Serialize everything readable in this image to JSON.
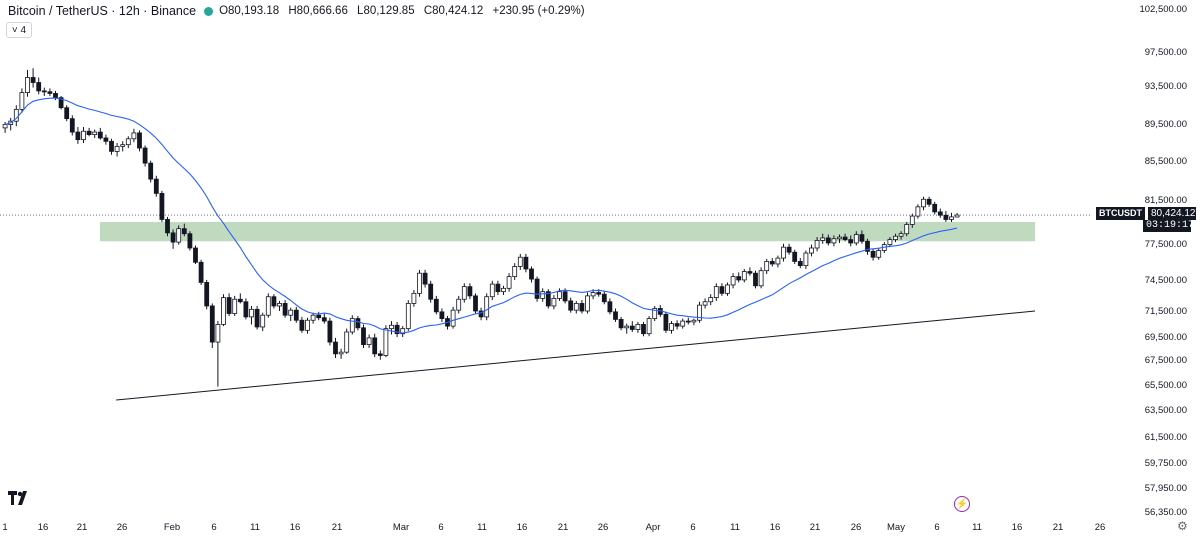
{
  "header": {
    "symbol": "Bitcoin / TetherUS · 12h · Binance",
    "open": "O80,193.18",
    "high": "H80,666.66",
    "low": "L80,129.85",
    "close": "C80,424.12",
    "change": "+230.95 (+0.29%)",
    "indicator_badge": "˅ 4"
  },
  "price_label": {
    "symbol": "BTCUSDT",
    "price": "80,424.12",
    "countdown": "03:19:17"
  },
  "colors": {
    "bull": "#131722",
    "bear": "#131722",
    "ma": "#2962ff",
    "zone": "#a5cba5",
    "trendline": "#131722",
    "accent": "#26a69a"
  },
  "icons": [
    "tradingview-logo-icon",
    "lightning-icon",
    "gear-icon"
  ],
  "chart_data": {
    "type": "candlestick",
    "title": "Bitcoin / TetherUS · 12h · Binance",
    "y_ticks": [
      "102,500.00",
      "97,500.00",
      "93,500.00",
      "89,500.00",
      "85,500.00",
      "81,500.00",
      "77,500.00",
      "74,500.00",
      "71,500.00",
      "69,500.00",
      "67,500.00",
      "65,500.00",
      "63,500.00",
      "61,500.00",
      "59,750.00",
      "57,950.00",
      "56,350.00"
    ],
    "x_ticks": [
      "1",
      "16",
      "21",
      "26",
      "Feb",
      "6",
      "11",
      "16",
      "21",
      "Mar",
      "6",
      "11",
      "16",
      "21",
      "26",
      "Apr",
      "6",
      "11",
      "16",
      "21",
      "26",
      "May",
      "6",
      "11",
      "16",
      "21",
      "26"
    ],
    "candles": [
      [
        1,
        90800,
        91500,
        90200,
        91200
      ],
      [
        1.5,
        91200,
        92000,
        90500,
        91600
      ],
      [
        2,
        91600,
        93500,
        91000,
        93000
      ],
      [
        2.5,
        93000,
        95500,
        92600,
        95000
      ],
      [
        3,
        95000,
        97700,
        94500,
        96800
      ],
      [
        3.5,
        96800,
        97900,
        95600,
        96200
      ],
      [
        4,
        96200,
        96800,
        94800,
        95200
      ],
      [
        4.5,
        95200,
        95600,
        94600,
        95100
      ],
      [
        5,
        95100,
        95500,
        94600,
        94900
      ],
      [
        5.5,
        94900,
        95200,
        94100,
        94400
      ],
      [
        6,
        94400,
        94600,
        93000,
        93200
      ],
      [
        6.5,
        93200,
        93500,
        91600,
        91900
      ],
      [
        7,
        91900,
        92300,
        89900,
        90300
      ],
      [
        7.5,
        90300,
        90900,
        88900,
        89400
      ],
      [
        8,
        89400,
        90900,
        89000,
        90400
      ],
      [
        8.5,
        90400,
        90800,
        89800,
        90000
      ],
      [
        9,
        90000,
        90600,
        89600,
        90300
      ],
      [
        9.5,
        90300,
        90800,
        89400,
        89600
      ],
      [
        10,
        89600,
        90000,
        88800,
        89200
      ],
      [
        10.5,
        89200,
        89500,
        87600,
        88000
      ],
      [
        11,
        88000,
        89000,
        87400,
        88600
      ],
      [
        11.5,
        88600,
        89200,
        88000,
        88800
      ],
      [
        12,
        88800,
        89800,
        88400,
        89500
      ],
      [
        12.5,
        89500,
        90700,
        89100,
        90200
      ],
      [
        13,
        90200,
        90500,
        88000,
        88400
      ],
      [
        13.5,
        88400,
        88700,
        86200,
        86600
      ],
      [
        14,
        86600,
        86900,
        84300,
        84700
      ],
      [
        14.5,
        84700,
        85100,
        82600,
        83000
      ],
      [
        15,
        83000,
        83300,
        79600,
        79900
      ],
      [
        15.5,
        79900,
        80200,
        77900,
        78300
      ],
      [
        16,
        78300,
        78700,
        76400,
        77200
      ],
      [
        16.5,
        77200,
        79200,
        76900,
        78800
      ],
      [
        17,
        78800,
        79400,
        77900,
        78200
      ],
      [
        17.5,
        78200,
        78500,
        76200,
        76500
      ],
      [
        18,
        76500,
        76800,
        74600,
        74800
      ],
      [
        18.5,
        74800,
        75100,
        72100,
        72400
      ],
      [
        19,
        72400,
        72700,
        69200,
        69600
      ],
      [
        19.5,
        69600,
        69900,
        64600,
        65300
      ],
      [
        20,
        65300,
        67800,
        60000,
        67400
      ],
      [
        20.5,
        67400,
        71000,
        67200,
        70600
      ],
      [
        21,
        70600,
        71100,
        68400,
        68700
      ],
      [
        21.5,
        68700,
        70800,
        68400,
        70400
      ],
      [
        22,
        70400,
        71100,
        69900,
        70100
      ],
      [
        22.5,
        70100,
        70500,
        68000,
        68300
      ],
      [
        23,
        68300,
        69600,
        67400,
        69200
      ],
      [
        23.5,
        69200,
        69600,
        66800,
        67100
      ],
      [
        24,
        67100,
        68800,
        66600,
        68500
      ],
      [
        24.5,
        68500,
        71100,
        68200,
        70700
      ],
      [
        25,
        70700,
        71000,
        69300,
        69600
      ],
      [
        25.5,
        69600,
        70200,
        69000,
        69900
      ],
      [
        26,
        69900,
        70300,
        68200,
        68500
      ],
      [
        26.5,
        68500,
        69400,
        67800,
        69100
      ],
      [
        27,
        69100,
        69500,
        67600,
        67900
      ],
      [
        27.5,
        67900,
        68300,
        66400,
        66700
      ],
      [
        28,
        66700,
        68200,
        66300,
        67900
      ],
      [
        28.5,
        67900,
        68800,
        67500,
        68500
      ],
      [
        29,
        68500,
        68900,
        67900,
        68200
      ],
      [
        29.5,
        68200,
        68700,
        67500,
        67800
      ],
      [
        30,
        67800,
        68200,
        64900,
        65300
      ],
      [
        30.5,
        65300,
        65800,
        63400,
        63900
      ],
      [
        31,
        63900,
        64500,
        63300,
        64100
      ],
      [
        31.5,
        64100,
        66900,
        63900,
        66500
      ],
      [
        32,
        66500,
        68500,
        66200,
        68100
      ],
      [
        32.5,
        68100,
        68400,
        66700,
        67000
      ],
      [
        33,
        67000,
        67400,
        64600,
        65000
      ],
      [
        33.5,
        65000,
        66200,
        64600,
        65800
      ],
      [
        34,
        65800,
        66300,
        63500,
        63900
      ],
      [
        34.5,
        63900,
        64300,
        63200,
        63700
      ],
      [
        35,
        63700,
        67300,
        63500,
        66900
      ],
      [
        35.5,
        66900,
        67800,
        66200,
        67300
      ],
      [
        36,
        67300,
        67700,
        65900,
        66300
      ],
      [
        36.5,
        66300,
        67200,
        65900,
        66900
      ],
      [
        37,
        66900,
        70300,
        66600,
        69900
      ],
      [
        37.5,
        69900,
        71500,
        69500,
        71100
      ],
      [
        38,
        71100,
        73900,
        70700,
        73500
      ],
      [
        38.5,
        73500,
        73900,
        71800,
        72200
      ],
      [
        39,
        72200,
        72600,
        70000,
        70400
      ],
      [
        39.5,
        70400,
        70800,
        68600,
        68900
      ],
      [
        40,
        68900,
        69300,
        67700,
        68100
      ],
      [
        40.5,
        68100,
        68400,
        66800,
        67200
      ],
      [
        41,
        67200,
        69500,
        66900,
        69100
      ],
      [
        41.5,
        69100,
        70800,
        68700,
        70400
      ],
      [
        42,
        70400,
        72300,
        70000,
        71900
      ],
      [
        42.5,
        71900,
        72300,
        70400,
        70800
      ],
      [
        43,
        70800,
        71100,
        68700,
        69000
      ],
      [
        43.5,
        69000,
        69400,
        67900,
        68300
      ],
      [
        44,
        68300,
        71100,
        67900,
        70700
      ],
      [
        44.5,
        70700,
        72600,
        70300,
        72200
      ],
      [
        45,
        72200,
        72600,
        70900,
        71300
      ],
      [
        45.5,
        71300,
        72000,
        70900,
        71700
      ],
      [
        46,
        71700,
        73500,
        71300,
        73100
      ],
      [
        46.5,
        73100,
        74700,
        72700,
        74300
      ],
      [
        47,
        74300,
        75800,
        73900,
        75400
      ],
      [
        47.5,
        75400,
        75800,
        73600,
        74000
      ],
      [
        48,
        74000,
        74300,
        72400,
        72800
      ],
      [
        48.5,
        72800,
        73100,
        70100,
        70500
      ],
      [
        49,
        70500,
        71700,
        70100,
        71300
      ],
      [
        49.5,
        71300,
        71600,
        69300,
        69600
      ],
      [
        50,
        69600,
        70900,
        69200,
        70500
      ],
      [
        50.5,
        70500,
        71700,
        70200,
        71300
      ],
      [
        51,
        71300,
        71700,
        69900,
        70200
      ],
      [
        51.5,
        70200,
        70600,
        68800,
        69100
      ],
      [
        52,
        69100,
        70200,
        68700,
        69900
      ],
      [
        52.5,
        69900,
        70300,
        68700,
        69000
      ],
      [
        53,
        69000,
        71200,
        68700,
        70800
      ],
      [
        53.5,
        70800,
        71600,
        70400,
        71200
      ],
      [
        54,
        71200,
        71600,
        70700,
        71000
      ],
      [
        54.5,
        71000,
        71400,
        69800,
        70100
      ],
      [
        55,
        70100,
        70500,
        68600,
        68900
      ],
      [
        55.5,
        68900,
        69300,
        67700,
        68000
      ],
      [
        56,
        68000,
        68300,
        66700,
        67000
      ],
      [
        56.5,
        67000,
        67500,
        66300,
        67200
      ],
      [
        57,
        67200,
        67800,
        66500,
        66800
      ],
      [
        57.5,
        66800,
        67700,
        66400,
        67400
      ],
      [
        58,
        67400,
        67700,
        66000,
        66300
      ],
      [
        58.5,
        66300,
        68400,
        66000,
        68100
      ],
      [
        59,
        68100,
        69600,
        67800,
        69300
      ],
      [
        59.5,
        69300,
        69700,
        68300,
        68600
      ],
      [
        60,
        68600,
        68900,
        66400,
        66700
      ],
      [
        60.5,
        66700,
        67800,
        66300,
        67500
      ],
      [
        61,
        67500,
        67900,
        66800,
        67200
      ],
      [
        61.5,
        67200,
        68100,
        66900,
        67800
      ],
      [
        62,
        67800,
        68200,
        67400,
        67700
      ],
      [
        62.5,
        67700,
        68100,
        67300,
        67900
      ],
      [
        63,
        67900,
        70100,
        67600,
        69700
      ],
      [
        63.5,
        69700,
        70500,
        69300,
        70100
      ],
      [
        64,
        70100,
        71000,
        69700,
        70600
      ],
      [
        64.5,
        70600,
        72300,
        70200,
        71900
      ],
      [
        65,
        71900,
        72300,
        70800,
        71100
      ],
      [
        65.5,
        71100,
        72400,
        70800,
        72100
      ],
      [
        66,
        72100,
        73500,
        71700,
        73100
      ],
      [
        66.5,
        73100,
        73600,
        72400,
        72700
      ],
      [
        67,
        72700,
        74000,
        72400,
        73700
      ],
      [
        67.5,
        73700,
        74200,
        73200,
        73500
      ],
      [
        68,
        73500,
        73800,
        71700,
        72000
      ],
      [
        68.5,
        72000,
        74200,
        71700,
        73800
      ],
      [
        69,
        73800,
        75200,
        73400,
        74900
      ],
      [
        69.5,
        74900,
        75300,
        74300,
        74600
      ],
      [
        70,
        74600,
        75600,
        74200,
        75300
      ],
      [
        70.5,
        75300,
        77000,
        74900,
        76600
      ],
      [
        71,
        76600,
        77000,
        75700,
        76000
      ],
      [
        71.5,
        76000,
        76300,
        74600,
        74900
      ],
      [
        72,
        74900,
        75300,
        74100,
        74400
      ],
      [
        72.5,
        74400,
        76200,
        74000,
        75900
      ],
      [
        73,
        75900,
        76900,
        75500,
        76500
      ],
      [
        73.5,
        76500,
        77800,
        76100,
        77400
      ],
      [
        74,
        77400,
        78200,
        77000,
        77700
      ],
      [
        74.5,
        77700,
        78100,
        76800,
        77100
      ],
      [
        75,
        77100,
        78000,
        76700,
        77600
      ],
      [
        75.5,
        77600,
        78100,
        77100,
        77800
      ],
      [
        76,
        77800,
        78200,
        77300,
        77500
      ],
      [
        76.5,
        77500,
        78000,
        76700,
        77100
      ],
      [
        77,
        77100,
        78500,
        76800,
        78100
      ],
      [
        77.5,
        78100,
        78600,
        77000,
        77300
      ],
      [
        78,
        77300,
        77600,
        75700,
        76100
      ],
      [
        78.5,
        76100,
        76400,
        75000,
        75400
      ],
      [
        79,
        75400,
        76500,
        75100,
        76200
      ],
      [
        79.5,
        76200,
        77200,
        75900,
        76900
      ],
      [
        80,
        76900,
        77800,
        76600,
        77500
      ],
      [
        80.5,
        77500,
        78200,
        77200,
        77900
      ],
      [
        81,
        77900,
        78500,
        77500,
        78200
      ],
      [
        81.5,
        78200,
        79600,
        77900,
        79300
      ],
      [
        82,
        79300,
        80600,
        78900,
        80300
      ],
      [
        82.5,
        80300,
        81700,
        80000,
        81400
      ],
      [
        83,
        81400,
        82600,
        81000,
        82300
      ],
      [
        83.5,
        82300,
        82600,
        81400,
        81700
      ],
      [
        84,
        81700,
        82000,
        80500,
        80800
      ],
      [
        84.5,
        80800,
        81200,
        80100,
        80400
      ],
      [
        85,
        80400,
        80900,
        79600,
        79900
      ],
      [
        85.5,
        79900,
        80700,
        79600,
        80200
      ],
      [
        86,
        80193,
        80667,
        80130,
        80424
      ]
    ],
    "ma_label": "MA",
    "support_zone": [
      77300,
      79600
    ],
    "trendline": {
      "x": [
        3,
        100
      ],
      "y": [
        59000,
        72000
      ]
    }
  }
}
